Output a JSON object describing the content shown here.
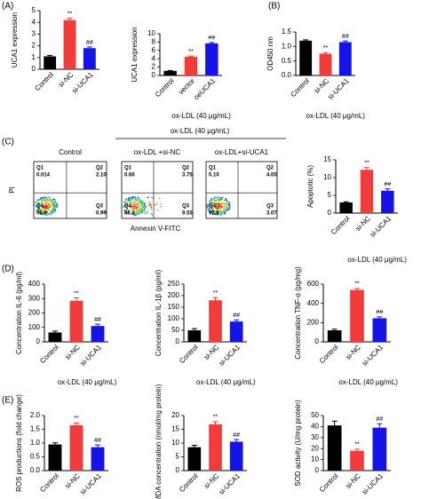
{
  "panel_labels": [
    "(A)",
    "(B)",
    "(C)",
    "(D)",
    "(E)"
  ],
  "flow_cytometry": {
    "group_label": "ox-LDL (40 μg/mL)",
    "x_label": "Annexin V-FITC",
    "y_label": "PI",
    "plots": [
      {
        "title": "Control",
        "quadrants": [
          {
            "name": "Q1",
            "value": "0.014"
          },
          {
            "name": "Q2",
            "value": "2.10"
          },
          {
            "name": "Q4",
            "value": "96.9"
          },
          {
            "name": "Q3",
            "value": "0.99"
          }
        ]
      },
      {
        "title": "ox-LDL +si-NC",
        "quadrants": [
          {
            "name": "Q1",
            "value": "0.66"
          },
          {
            "name": "Q2",
            "value": "3.75"
          },
          {
            "name": "Q4",
            "value": "86.0"
          },
          {
            "name": "Q3",
            "value": "9.55"
          }
        ]
      },
      {
        "title": "ox-LDL+si-UCA1",
        "quadrants": [
          {
            "name": "Q1",
            "value": "0.10"
          },
          {
            "name": "Q2",
            "value": "4.05"
          },
          {
            "name": "Q4",
            "value": "92.8"
          },
          {
            "name": "Q3",
            "value": "3.07"
          }
        ]
      }
    ]
  },
  "chart_data": [
    {
      "type": "bar",
      "y_label": "UCA1 expression",
      "categories": [
        "Control",
        "si-NC",
        "si-UCA1"
      ],
      "values": [
        1.1,
        4.2,
        1.8
      ],
      "errors": [
        0.08,
        0.15,
        0.1
      ],
      "colors": [
        "#000000",
        "#f23c3c",
        "#1414e6"
      ],
      "annotations": [
        null,
        "**",
        "##"
      ],
      "ylim": [
        0,
        5
      ],
      "yticks": [
        0,
        1,
        2,
        3,
        4,
        5
      ]
    },
    {
      "type": "bar",
      "y_label": "UCA1 expression",
      "categories": [
        "Control",
        "vector",
        "oeUCA1"
      ],
      "values": [
        1.1,
        4.5,
        7.7
      ],
      "errors": [
        0.1,
        0.15,
        0.2
      ],
      "colors": [
        "#000000",
        "#f23c3c",
        "#1414e6"
      ],
      "annotations": [
        null,
        "**",
        "##"
      ],
      "ylim": [
        0,
        10
      ],
      "yticks": [
        0,
        2,
        4,
        6,
        8,
        10
      ],
      "group_label": "ox-LDL (40 μg/mL)"
    },
    {
      "type": "bar",
      "y_label": "OD450 nm",
      "categories": [
        "Control",
        "si-NC",
        "si-UCA1"
      ],
      "values": [
        1.2,
        0.75,
        1.15
      ],
      "errors": [
        0.03,
        0.04,
        0.04
      ],
      "colors": [
        "#000000",
        "#f23c3c",
        "#1414e6"
      ],
      "annotations": [
        null,
        "**",
        "##"
      ],
      "ylim": [
        0,
        1.5
      ],
      "yticks": [
        {
          "value": 0,
          "label": "0.0"
        },
        0.5,
        {
          "value": 1,
          "label": "1.0"
        },
        1.5
      ],
      "group_label": "ox-LDL (40 μg/mL)"
    },
    {
      "type": "bar",
      "y_label": "Apoptotic (%)",
      "categories": [
        "Control",
        "si-NC",
        "si-UCA1"
      ],
      "values": [
        3,
        12.2,
        6.3
      ],
      "errors": [
        0.2,
        0.6,
        0.5
      ],
      "colors": [
        "#000000",
        "#f23c3c",
        "#1414e6"
      ],
      "annotations": [
        null,
        "**",
        "##"
      ],
      "ylim": [
        0,
        15
      ],
      "yticks": [
        0,
        5,
        10,
        15
      ],
      "group_label": "ox-LDL (40 μg/mL)"
    },
    {
      "type": "bar",
      "y_label": "Concentration IL-6 (pg/ml)",
      "categories": [
        "Control",
        "si-NC",
        "si-UCA1"
      ],
      "values": [
        65,
        285,
        110
      ],
      "errors": [
        10,
        20,
        12
      ],
      "colors": [
        "#000000",
        "#f23c3c",
        "#1414e6"
      ],
      "annotations": [
        null,
        "**",
        "##"
      ],
      "ylim": [
        0,
        400
      ],
      "yticks": [
        0,
        100,
        200,
        300,
        400
      ],
      "group_label": "ox-LDL (40 μg/mL)"
    },
    {
      "type": "bar",
      "y_label": "Concentration IL-1β (pg/ml)",
      "categories": [
        "Control",
        "si-NC",
        "si-UCA1"
      ],
      "values": [
        50,
        180,
        88
      ],
      "errors": [
        7,
        12,
        7
      ],
      "colors": [
        "#000000",
        "#f23c3c",
        "#1414e6"
      ],
      "annotations": [
        null,
        "**",
        "##"
      ],
      "ylim": [
        0,
        250
      ],
      "yticks": [
        0,
        50,
        100,
        150,
        200,
        250
      ],
      "group_label": "ox-LDL (40 μg/mL)"
    },
    {
      "type": "bar",
      "y_label": "Concentration TNF-α (pg/mg)",
      "categories": [
        "Control",
        "si-NC",
        "si-UCA1"
      ],
      "values": [
        120,
        540,
        245
      ],
      "errors": [
        12,
        15,
        15
      ],
      "colors": [
        "#000000",
        "#f23c3c",
        "#1414e6"
      ],
      "annotations": [
        null,
        "**",
        "##"
      ],
      "ylim": [
        0,
        600
      ],
      "yticks": [
        0,
        200,
        400,
        600
      ],
      "group_label": "ox-LDL (40 μg/mL)"
    },
    {
      "type": "bar",
      "y_label": "ROS productions (fold change)",
      "categories": [
        "Control",
        "si-NC",
        "si-UCA1"
      ],
      "values": [
        0.95,
        1.65,
        0.85
      ],
      "errors": [
        0.06,
        0.08,
        0.08
      ],
      "colors": [
        "#000000",
        "#f23c3c",
        "#1414e6"
      ],
      "annotations": [
        null,
        "**",
        "##"
      ],
      "ylim": [
        0,
        2
      ],
      "yticks": [
        {
          "value": 0,
          "label": "0.0"
        },
        0.5,
        {
          "value": 1,
          "label": "1.0"
        },
        1.5,
        {
          "value": 2,
          "label": "2.0"
        }
      ],
      "group_label": "ox-LDL (40 μg/mL)"
    },
    {
      "type": "bar",
      "y_label": "MDA concentration (nmol/mg protein)",
      "categories": [
        "Control",
        "si-NC",
        "si-UCA1"
      ],
      "values": [
        8.5,
        16.8,
        10.5
      ],
      "errors": [
        0.7,
        1.0,
        0.8
      ],
      "colors": [
        "#000000",
        "#f23c3c",
        "#1414e6"
      ],
      "annotations": [
        null,
        "**",
        "##"
      ],
      "ylim": [
        0,
        20
      ],
      "yticks": [
        0,
        5,
        10,
        15,
        20
      ],
      "group_label": "ox-LDL (40 μg/mL)"
    },
    {
      "type": "bar",
      "y_label": "SOD activity (U/mg protein)",
      "categories": [
        "Control",
        "si-NC",
        "si-UCA1"
      ],
      "values": [
        41,
        18,
        39
      ],
      "errors": [
        4,
        1.5,
        3.5
      ],
      "colors": [
        "#000000",
        "#f23c3c",
        "#1414e6"
      ],
      "annotations": [
        null,
        "**",
        "##"
      ],
      "ylim": [
        0,
        50
      ],
      "yticks": [
        0,
        10,
        20,
        30,
        40,
        50
      ],
      "group_label": "ox-LDL (40 μg/mL)"
    }
  ]
}
